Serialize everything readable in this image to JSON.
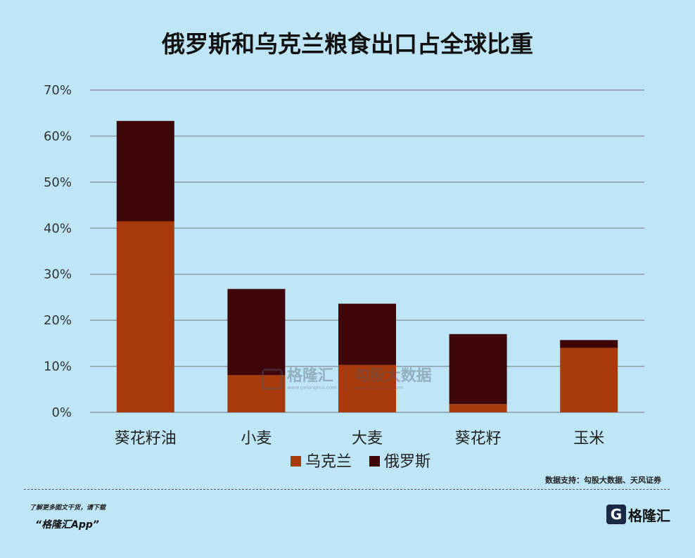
{
  "chart_data": {
    "type": "bar",
    "stacked": true,
    "title": "俄罗斯和乌克兰粮食出口占全球比重",
    "categories": [
      "葵花籽油",
      "小麦",
      "大麦",
      "葵花籽",
      "玉米"
    ],
    "series": [
      {
        "name": "乌克兰",
        "values": [
          41.5,
          8.1,
          10.3,
          1.8,
          14.0
        ],
        "color": "#a83a0b"
      },
      {
        "name": "俄罗斯",
        "values": [
          21.8,
          18.7,
          13.3,
          15.2,
          1.7
        ],
        "color": "#3f0609"
      }
    ],
    "ylim": [
      0,
      70
    ],
    "yticks": [
      0,
      10,
      20,
      30,
      40,
      50,
      60,
      70
    ],
    "ytick_labels": [
      "0%",
      "10%",
      "20%",
      "30%",
      "40%",
      "50%",
      "60%",
      "70%"
    ],
    "grid": true,
    "legend_position": "bottom"
  },
  "source_text": "数据支持：勾股大数据、天风证券",
  "footer": {
    "promo_line": "了解更多图文干货，请下载",
    "app_name": "“格隆汇App”",
    "logo_text": "格隆汇"
  },
  "watermark": {
    "brand": "格隆汇",
    "brand_url": "www.gelonghui.com",
    "partner": "勾股大数据",
    "partner_url": "www.gogudata.com"
  },
  "colors": {
    "background": "#bfe6f6",
    "grid": "#8a9aa6"
  }
}
